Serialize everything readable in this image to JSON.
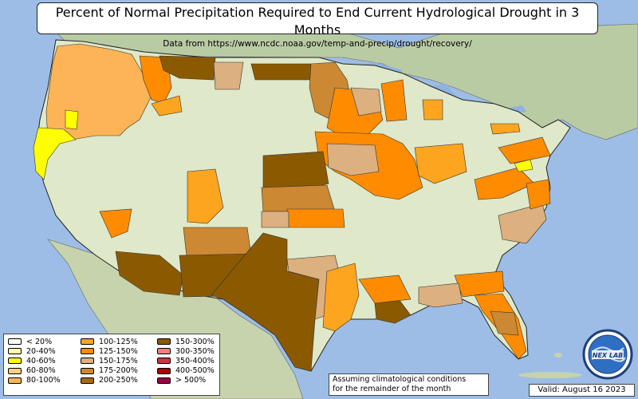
{
  "title": {
    "main": "Percent of Normal Precipitation Required to End Current Hydrological Drought in 3 Months",
    "sub": "Data from https://www.ncdc.noaa.gov/temp-and-precip/drought/recovery/"
  },
  "legend": {
    "items": [
      {
        "label": "< 20%",
        "color": "#fefef6"
      },
      {
        "label": "20-40%",
        "color": "#ffffb0"
      },
      {
        "label": "40-60%",
        "color": "#ffff00"
      },
      {
        "label": "60-80%",
        "color": "#fdd08a"
      },
      {
        "label": "80-100%",
        "color": "#fdb456"
      },
      {
        "label": "100-125%",
        "color": "#fda51e"
      },
      {
        "label": "125-150%",
        "color": "#ff8c00"
      },
      {
        "label": "150-175%",
        "color": "#ddb080"
      },
      {
        "label": "175-200%",
        "color": "#cc8833"
      },
      {
        "label": "200-250%",
        "color": "#a66a12"
      },
      {
        "label": "150-300%",
        "color": "#8b5a00"
      },
      {
        "label": "300-350%",
        "color": "#f08080"
      },
      {
        "label": "350-400%",
        "color": "#cc3344"
      },
      {
        "label": "400-500%",
        "color": "#a80000"
      },
      {
        "label": "> 500%",
        "color": "#990040"
      }
    ]
  },
  "note": {
    "line1": "Assuming climatological conditions",
    "line2": "for the remainder of the month"
  },
  "valid": "Valid: August 16 2023",
  "logo": {
    "text": "NEX LAB",
    "icon": "globe-logo-icon"
  },
  "colors": {
    "ocean": "#9dbde6",
    "land": "#dfe8c8",
    "border": "#222222"
  }
}
